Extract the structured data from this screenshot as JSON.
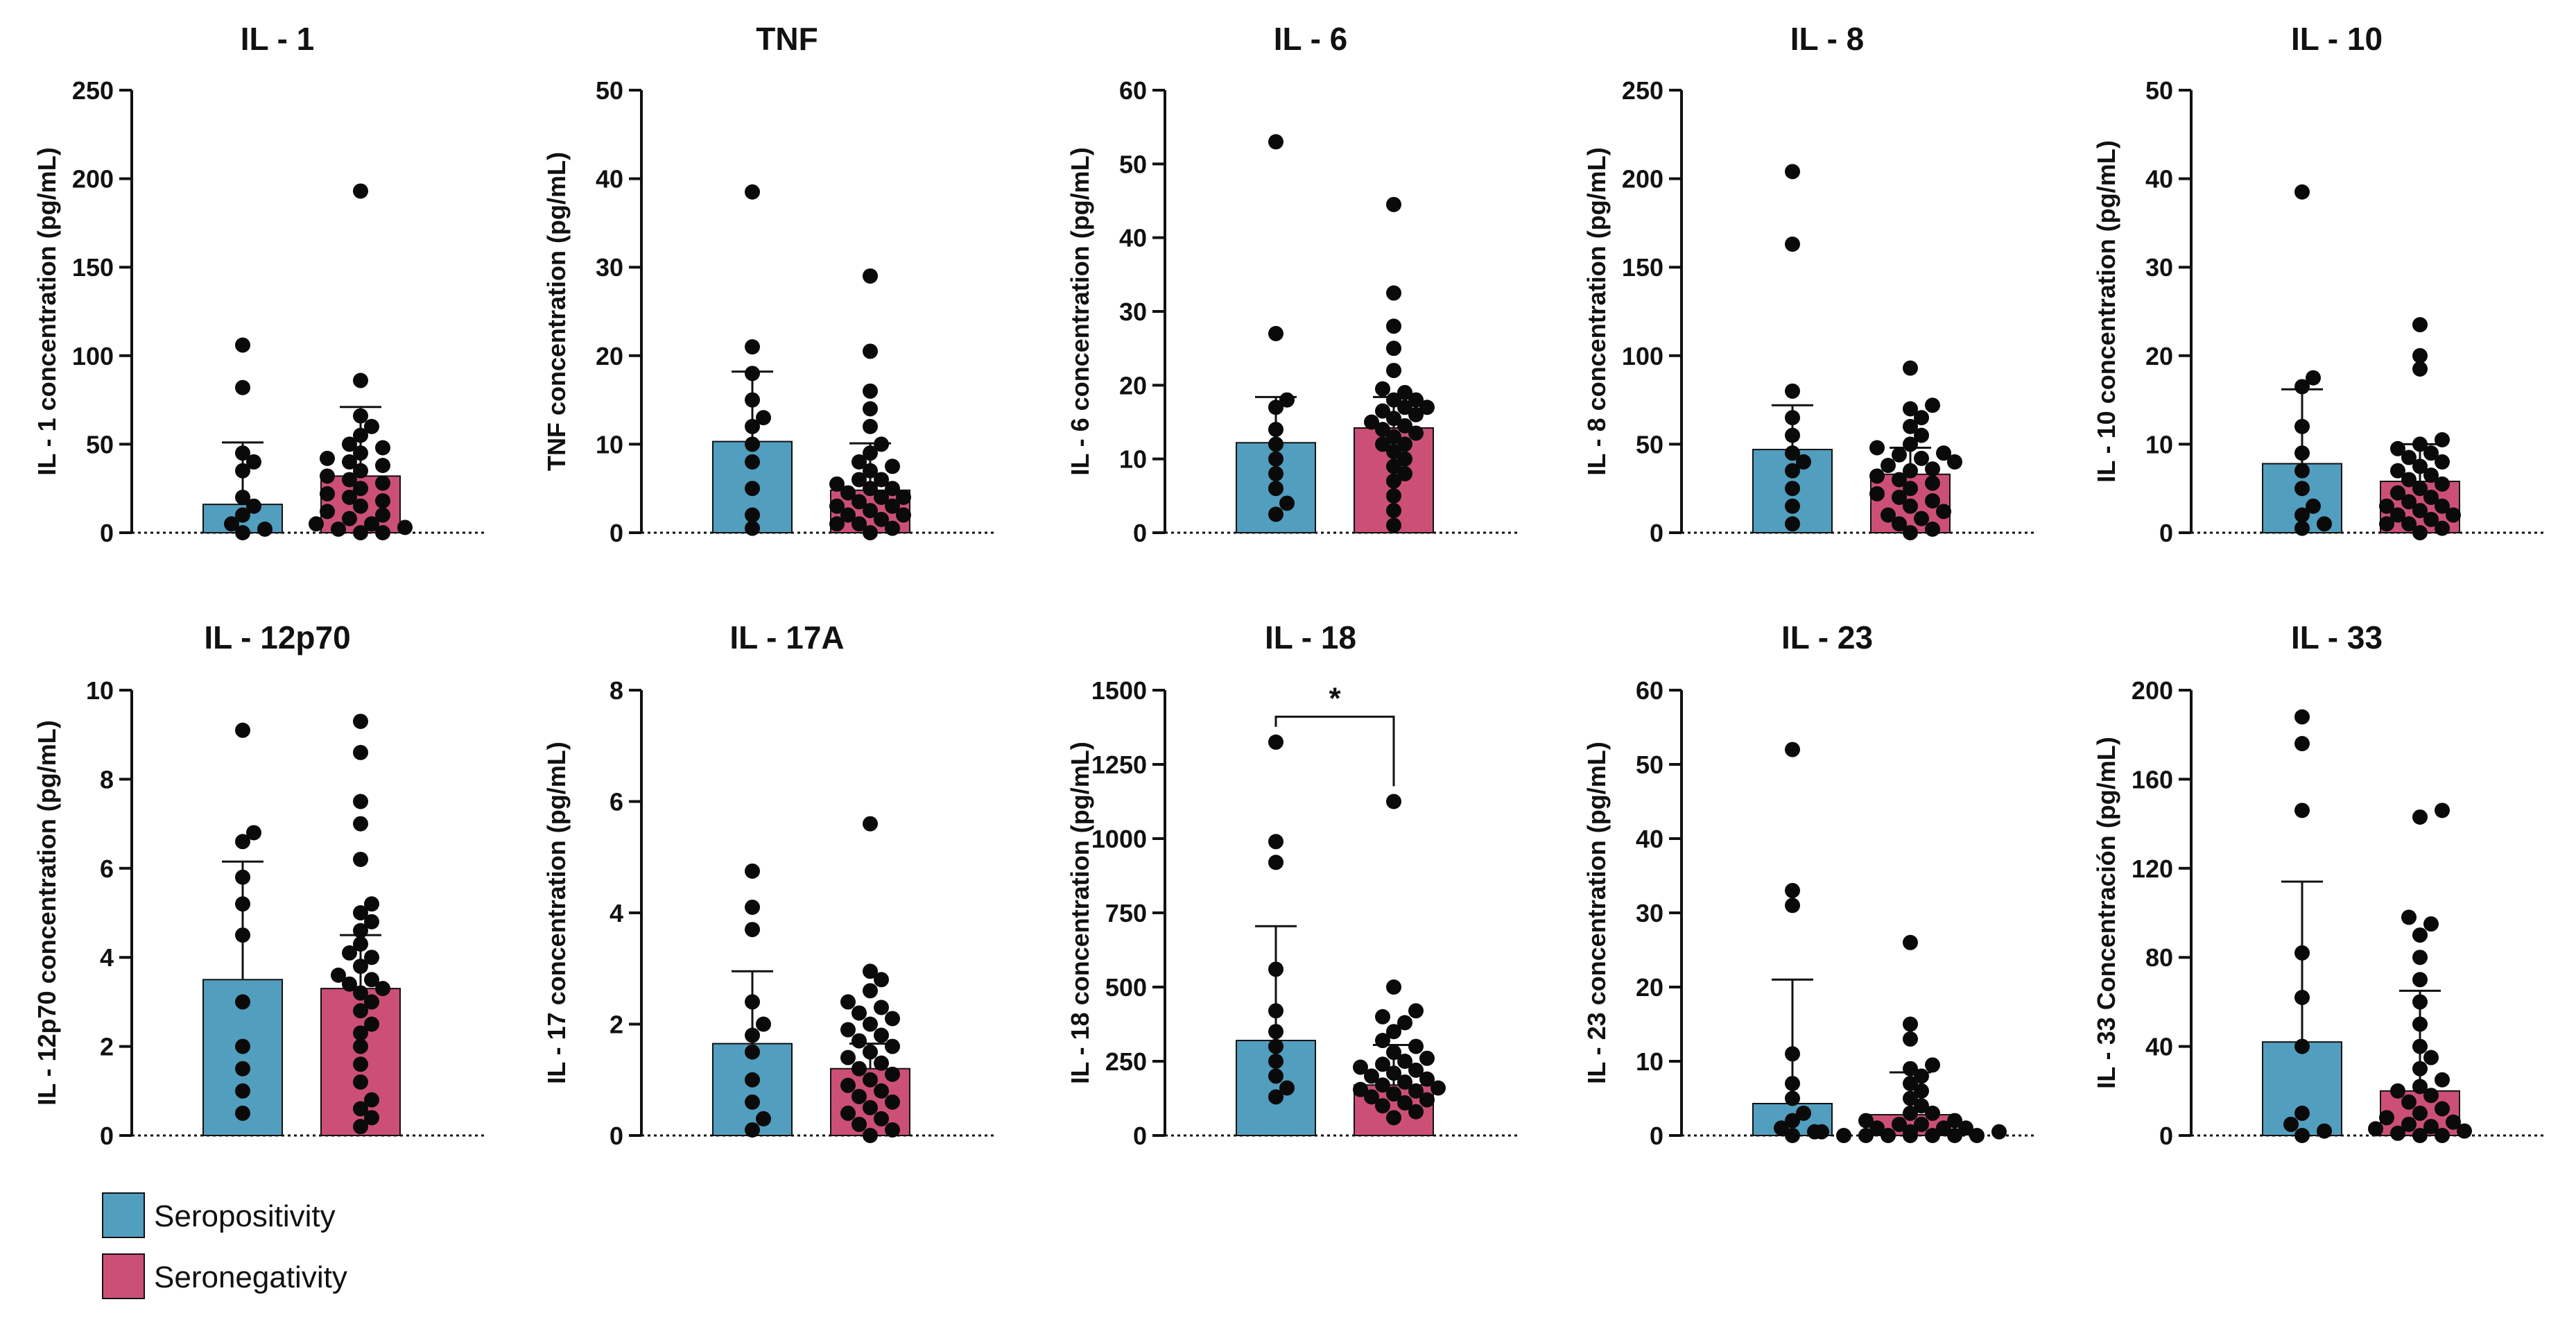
{
  "colors": {
    "seropositivity": "#529ebf",
    "seronegativity": "#cc5075",
    "points": "#0a0a0a",
    "axis": "#111111"
  },
  "legend": {
    "items": [
      {
        "label": "Seropositivity",
        "color": "#529ebf"
      },
      {
        "label": "Seronegativity",
        "color": "#cc5075"
      }
    ]
  },
  "chart_data": [
    {
      "type": "bar",
      "title": "IL - 1",
      "ylabel": "IL - 1 concentration (pg/mL)",
      "ylim": [
        0,
        250
      ],
      "ticks": [
        0,
        50,
        100,
        150,
        200,
        250
      ],
      "categories": [
        "Seropositivity",
        "Seronegativity"
      ],
      "series": [
        {
          "name": "Seropositivity",
          "mean": 16,
          "error_upper": 51,
          "points": [
            0,
            2,
            5,
            10,
            15,
            20,
            35,
            40,
            45,
            82,
            106
          ]
        },
        {
          "name": "Seronegativity",
          "mean": 32,
          "error_upper": 71,
          "points": [
            0,
            0,
            2,
            3,
            5,
            5,
            8,
            10,
            12,
            15,
            18,
            20,
            22,
            25,
            28,
            30,
            32,
            35,
            38,
            40,
            42,
            45,
            48,
            50,
            55,
            60,
            66,
            86,
            193
          ]
        }
      ]
    },
    {
      "type": "bar",
      "title": "TNF",
      "ylabel": "TNF concentration (pg/mL)",
      "ylim": [
        0,
        50
      ],
      "ticks": [
        0,
        10,
        20,
        30,
        40,
        50
      ],
      "categories": [
        "Seropositivity",
        "Seronegativity"
      ],
      "series": [
        {
          "name": "Seropositivity",
          "mean": 10.3,
          "error_upper": 18.2,
          "points": [
            0.5,
            2,
            5,
            8,
            10,
            12,
            13,
            15,
            18,
            21,
            38.5
          ]
        },
        {
          "name": "Seronegativity",
          "mean": 4.8,
          "error_upper": 10.1,
          "points": [
            0,
            0.5,
            1,
            1,
            1.5,
            2,
            2,
            2.5,
            3,
            3,
            3.5,
            4,
            4,
            4.5,
            5,
            5,
            5.5,
            6,
            6,
            7,
            7.5,
            8,
            9,
            10,
            12,
            14,
            16,
            20.5,
            29
          ]
        }
      ]
    },
    {
      "type": "bar",
      "title": "IL - 6",
      "ylabel": "IL - 6 concentration (pg/mL)",
      "ylim": [
        0,
        60
      ],
      "ticks": [
        0,
        10,
        20,
        30,
        40,
        50,
        60
      ],
      "categories": [
        "Seropositivity",
        "Seronegativity"
      ],
      "series": [
        {
          "name": "Seropositivity",
          "mean": 12.2,
          "error_upper": 18.4,
          "points": [
            2.5,
            4,
            6,
            8,
            10,
            12,
            14,
            17,
            18,
            27,
            53
          ]
        },
        {
          "name": "Seronegativity",
          "mean": 14.2,
          "error_upper": 18.4,
          "points": [
            1,
            3,
            5,
            7,
            8,
            9,
            10,
            11,
            12,
            12,
            13,
            13.5,
            14,
            14.5,
            15,
            15.5,
            16,
            16.5,
            17,
            17,
            18,
            18,
            19,
            19.5,
            22,
            25,
            28,
            32.5,
            44.5
          ]
        }
      ]
    },
    {
      "type": "bar",
      "title": "IL - 8",
      "ylabel": "IL - 8 concentration (pg/mL)",
      "ylim": [
        0,
        250
      ],
      "ticks": [
        0,
        50,
        100,
        150,
        200,
        250
      ],
      "categories": [
        "Seropositivity",
        "Seronegativity"
      ],
      "series": [
        {
          "name": "Seropositivity",
          "mean": 47,
          "error_upper": 72,
          "points": [
            5,
            15,
            25,
            35,
            40,
            45,
            55,
            65,
            80,
            163,
            204
          ]
        },
        {
          "name": "Seronegativity",
          "mean": 33,
          "error_upper": 48,
          "points": [
            0,
            2,
            5,
            8,
            10,
            12,
            15,
            18,
            20,
            22,
            25,
            28,
            30,
            32,
            35,
            36,
            38,
            40,
            42,
            44,
            45,
            48,
            50,
            55,
            60,
            65,
            70,
            72,
            93
          ]
        }
      ]
    },
    {
      "type": "bar",
      "title": "IL - 10",
      "ylabel": "IL - 10 concentration (pg/mL)",
      "ylim": [
        0,
        50
      ],
      "ticks": [
        0,
        10,
        20,
        30,
        40,
        50
      ],
      "categories": [
        "Seropositivity",
        "Seronegativity"
      ],
      "series": [
        {
          "name": "Seropositivity",
          "mean": 7.8,
          "error_upper": 16.2,
          "points": [
            0.5,
            1,
            2,
            3,
            5,
            7,
            9,
            12,
            16.5,
            17.5,
            38.5
          ]
        },
        {
          "name": "Seronegativity",
          "mean": 5.8,
          "error_upper": 10,
          "points": [
            0,
            0.5,
            1,
            1,
            1.5,
            2,
            2,
            2.5,
            3,
            3,
            3.5,
            4,
            4.5,
            5,
            5.5,
            6,
            6.5,
            7,
            7.5,
            8,
            8.5,
            9,
            9.5,
            10,
            10.5,
            18.5,
            20,
            23.5
          ]
        }
      ]
    },
    {
      "type": "bar",
      "title": "IL - 12p70",
      "ylabel": "IL - 12p70 concentration (pg/mL)",
      "ylim": [
        0,
        10
      ],
      "ticks": [
        0,
        2,
        4,
        6,
        8,
        10
      ],
      "categories": [
        "Seropositivity",
        "Seronegativity"
      ],
      "series": [
        {
          "name": "Seropositivity",
          "mean": 3.5,
          "error_upper": 6.15,
          "points": [
            0.5,
            1,
            1.5,
            2,
            3,
            4.5,
            5.2,
            5.8,
            6.6,
            6.8,
            9.1
          ]
        },
        {
          "name": "Seronegativity",
          "mean": 3.3,
          "error_upper": 4.5,
          "points": [
            0.2,
            0.4,
            0.6,
            0.8,
            1.2,
            1.6,
            2,
            2.3,
            2.5,
            2.8,
            3,
            3.2,
            3.3,
            3.4,
            3.5,
            3.6,
            3.8,
            4,
            4.1,
            4.3,
            4.6,
            4.8,
            5,
            5.2,
            6.2,
            7,
            7.5,
            8.6,
            9.3
          ]
        }
      ]
    },
    {
      "type": "bar",
      "title": "IL - 17A",
      "ylabel": "IL - 17 concentration (pg/mL)",
      "ylim": [
        0,
        8
      ],
      "ticks": [
        0,
        2,
        4,
        6,
        8
      ],
      "categories": [
        "Seropositivity",
        "Seronegativity"
      ],
      "series": [
        {
          "name": "Seropositivity",
          "mean": 1.65,
          "error_upper": 2.95,
          "points": [
            0.1,
            0.3,
            0.6,
            1,
            1.5,
            1.8,
            2,
            2.4,
            3.7,
            4.1,
            4.75
          ]
        },
        {
          "name": "Seronegativity",
          "mean": 1.2,
          "error_upper": 1.65,
          "points": [
            0,
            0.1,
            0.2,
            0.3,
            0.4,
            0.5,
            0.6,
            0.7,
            0.8,
            0.9,
            1,
            1.1,
            1.2,
            1.3,
            1.4,
            1.5,
            1.6,
            1.7,
            1.8,
            1.9,
            2,
            2.1,
            2.2,
            2.3,
            2.4,
            2.6,
            2.8,
            2.95,
            5.6
          ]
        }
      ]
    },
    {
      "type": "bar",
      "title": "IL - 18",
      "ylabel": "IL - 18 concentration (pg/mL)",
      "ylim": [
        0,
        1500
      ],
      "ticks": [
        0,
        250,
        500,
        750,
        1000,
        1250,
        1500
      ],
      "categories": [
        "Seropositivity",
        "Seronegativity"
      ],
      "significance": {
        "label": "*"
      },
      "series": [
        {
          "name": "Seropositivity",
          "mean": 320,
          "error_upper": 705,
          "points": [
            130,
            160,
            200,
            250,
            300,
            350,
            420,
            560,
            920,
            990,
            1325
          ]
        },
        {
          "name": "Seronegativity",
          "mean": 170,
          "error_upper": 305,
          "points": [
            60,
            80,
            100,
            110,
            120,
            130,
            140,
            150,
            155,
            160,
            170,
            180,
            190,
            200,
            210,
            220,
            230,
            240,
            250,
            260,
            280,
            300,
            320,
            350,
            380,
            400,
            420,
            500,
            1125
          ]
        }
      ]
    },
    {
      "type": "bar",
      "title": "IL - 23",
      "ylabel": "IL - 23 concentration (pg/mL)",
      "ylim": [
        0,
        60
      ],
      "ticks": [
        0,
        10,
        20,
        30,
        40,
        50,
        60
      ],
      "categories": [
        "Seropositivity",
        "Seronegativity"
      ],
      "series": [
        {
          "name": "Seropositivity",
          "mean": 4.3,
          "error_upper": 21,
          "points": [
            0,
            0.5,
            1,
            2,
            3,
            5,
            7,
            11,
            31,
            33,
            52
          ]
        },
        {
          "name": "Seronegativity",
          "mean": 2.8,
          "error_upper": 8.5,
          "points": [
            0,
            0,
            0,
            0,
            0,
            0,
            0,
            0.5,
            0.5,
            0.5,
            1,
            1,
            1,
            1.5,
            1.5,
            2,
            2,
            3,
            3,
            4,
            5,
            6,
            7,
            8,
            9,
            9.5,
            13,
            15,
            26
          ]
        }
      ]
    },
    {
      "type": "bar",
      "title": "IL - 33",
      "ylabel": "IL - 33 Concentración (pg/mL)",
      "ylim": [
        0,
        200
      ],
      "ticks": [
        0,
        40,
        80,
        120,
        160,
        200
      ],
      "categories": [
        "Seropositivity",
        "Seronegativity"
      ],
      "series": [
        {
          "name": "Seropositivity",
          "mean": 42,
          "error_upper": 114,
          "points": [
            0,
            2,
            5,
            10,
            40,
            62,
            82,
            146,
            176,
            188
          ]
        },
        {
          "name": "Seronegativity",
          "mean": 20,
          "error_upper": 65,
          "points": [
            0,
            0,
            1,
            2,
            3,
            4,
            5,
            6,
            8,
            10,
            12,
            15,
            18,
            20,
            22,
            25,
            30,
            35,
            40,
            50,
            60,
            70,
            80,
            90,
            95,
            98,
            143,
            146
          ]
        }
      ]
    }
  ]
}
